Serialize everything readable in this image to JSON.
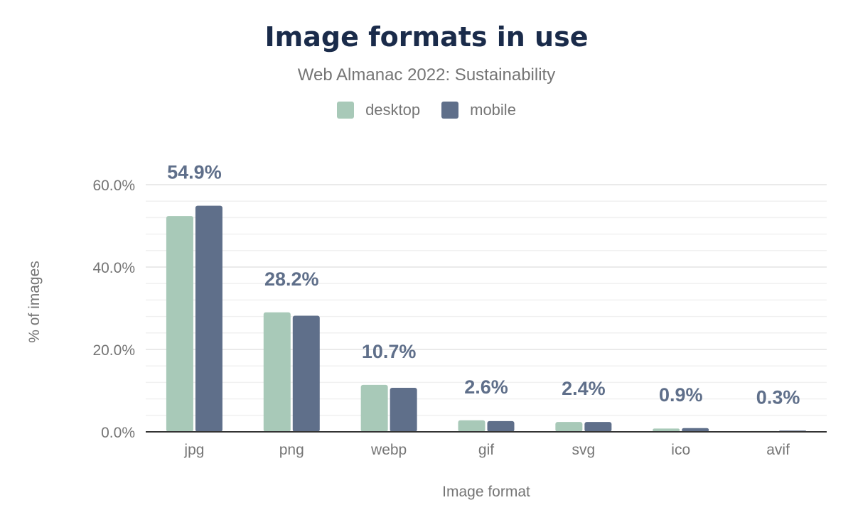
{
  "chart_data": {
    "type": "bar",
    "title": "Image formats in use",
    "subtitle": "Web Almanac 2022: Sustainability",
    "xlabel": "Image format",
    "ylabel": "% of images",
    "categories": [
      "jpg",
      "png",
      "webp",
      "gif",
      "svg",
      "ico",
      "avif"
    ],
    "series": [
      {
        "name": "desktop",
        "color": "#a8c9b8",
        "values": [
          52.4,
          29.0,
          11.4,
          2.8,
          2.4,
          0.8,
          0.2
        ]
      },
      {
        "name": "mobile",
        "color": "#5f6f8a",
        "values": [
          54.9,
          28.2,
          10.7,
          2.6,
          2.4,
          0.9,
          0.3
        ]
      }
    ],
    "data_labels": [
      "54.9%",
      "28.2%",
      "10.7%",
      "2.6%",
      "2.4%",
      "0.9%",
      "0.3%"
    ],
    "ylim": [
      0,
      60
    ],
    "yticks": [
      0,
      20,
      40,
      60
    ],
    "ytick_labels": [
      "0.0%",
      "20.0%",
      "40.0%",
      "60.0%"
    ],
    "grid": true,
    "legend_position": "top-center"
  }
}
